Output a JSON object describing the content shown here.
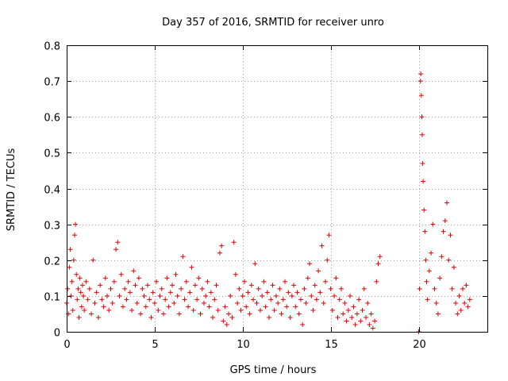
{
  "colors": {
    "series": "#e00000",
    "grid": "#a0a0a0",
    "axis": "#000000"
  },
  "chart_data": {
    "type": "scatter",
    "title": "Day 357 of 2016, SRMTID for receiver unro",
    "xlabel": "GPS time / hours",
    "ylabel": "SRMTID / TECUs",
    "xlim": [
      0,
      23.9
    ],
    "ylim": [
      0,
      0.8
    ],
    "xticks": [
      0,
      5,
      10,
      15,
      20
    ],
    "yticks": [
      0,
      0.1,
      0.2,
      0.3,
      0.4,
      0.5,
      0.6,
      0.7,
      0.8
    ],
    "xtick_labels": [
      "0",
      "5",
      "10",
      "15",
      "20"
    ],
    "ytick_labels": [
      "0",
      "0.1",
      "0.2",
      "0.3",
      "0.4",
      "0.5",
      "0.6",
      "0.7",
      "0.8"
    ],
    "grid": true,
    "marker": "+",
    "series": [
      {
        "name": "SRMTID",
        "points": [
          [
            0.0,
            0.08
          ],
          [
            0.05,
            0.12
          ],
          [
            0.1,
            0.05
          ],
          [
            0.15,
            0.18
          ],
          [
            0.2,
            0.23
          ],
          [
            0.25,
            0.1
          ],
          [
            0.3,
            0.14
          ],
          [
            0.35,
            0.06
          ],
          [
            0.4,
            0.2
          ],
          [
            0.45,
            0.27
          ],
          [
            0.5,
            0.3
          ],
          [
            0.55,
            0.16
          ],
          [
            0.6,
            0.09
          ],
          [
            0.65,
            0.12
          ],
          [
            0.7,
            0.04
          ],
          [
            0.75,
            0.15
          ],
          [
            0.8,
            0.11
          ],
          [
            0.85,
            0.07
          ],
          [
            0.9,
            0.13
          ],
          [
            0.95,
            0.1
          ],
          [
            1.0,
            0.06
          ],
          [
            1.1,
            0.14
          ],
          [
            1.2,
            0.09
          ],
          [
            1.3,
            0.12
          ],
          [
            1.4,
            0.05
          ],
          [
            1.5,
            0.2
          ],
          [
            1.6,
            0.08
          ],
          [
            1.7,
            0.11
          ],
          [
            1.8,
            0.04
          ],
          [
            1.9,
            0.13
          ],
          [
            2.0,
            0.09
          ],
          [
            2.1,
            0.07
          ],
          [
            2.2,
            0.15
          ],
          [
            2.3,
            0.1
          ],
          [
            2.4,
            0.06
          ],
          [
            2.5,
            0.12
          ],
          [
            2.6,
            0.08
          ],
          [
            2.7,
            0.14
          ],
          [
            2.8,
            0.23
          ],
          [
            2.9,
            0.25
          ],
          [
            3.0,
            0.1
          ],
          [
            3.1,
            0.16
          ],
          [
            3.2,
            0.07
          ],
          [
            3.3,
            0.12
          ],
          [
            3.4,
            0.09
          ],
          [
            3.5,
            0.14
          ],
          [
            3.6,
            0.11
          ],
          [
            3.7,
            0.06
          ],
          [
            3.8,
            0.17
          ],
          [
            3.9,
            0.13
          ],
          [
            4.0,
            0.08
          ],
          [
            4.1,
            0.15
          ],
          [
            4.2,
            0.05
          ],
          [
            4.3,
            0.12
          ],
          [
            4.4,
            0.1
          ],
          [
            4.5,
            0.07
          ],
          [
            4.6,
            0.13
          ],
          [
            4.7,
            0.09
          ],
          [
            4.8,
            0.04
          ],
          [
            4.9,
            0.11
          ],
          [
            5.0,
            0.08
          ],
          [
            5.1,
            0.14
          ],
          [
            5.2,
            0.06
          ],
          [
            5.3,
            0.1
          ],
          [
            5.4,
            0.12
          ],
          [
            5.5,
            0.05
          ],
          [
            5.6,
            0.09
          ],
          [
            5.7,
            0.15
          ],
          [
            5.8,
            0.07
          ],
          [
            5.9,
            0.11
          ],
          [
            6.0,
            0.13
          ],
          [
            6.1,
            0.08
          ],
          [
            6.2,
            0.16
          ],
          [
            6.3,
            0.1
          ],
          [
            6.4,
            0.05
          ],
          [
            6.5,
            0.12
          ],
          [
            6.6,
            0.21
          ],
          [
            6.7,
            0.09
          ],
          [
            6.8,
            0.14
          ],
          [
            6.9,
            0.07
          ],
          [
            7.0,
            0.11
          ],
          [
            7.1,
            0.18
          ],
          [
            7.2,
            0.06
          ],
          [
            7.3,
            0.13
          ],
          [
            7.4,
            0.09
          ],
          [
            7.5,
            0.15
          ],
          [
            7.6,
            0.05
          ],
          [
            7.7,
            0.12
          ],
          [
            7.8,
            0.08
          ],
          [
            7.9,
            0.1
          ],
          [
            8.0,
            0.14
          ],
          [
            8.1,
            0.07
          ],
          [
            8.2,
            0.11
          ],
          [
            8.3,
            0.04
          ],
          [
            8.4,
            0.09
          ],
          [
            8.5,
            0.13
          ],
          [
            8.6,
            0.06
          ],
          [
            8.7,
            0.22
          ],
          [
            8.8,
            0.24
          ],
          [
            8.9,
            0.03
          ],
          [
            9.0,
            0.07
          ],
          [
            9.1,
            0.02
          ],
          [
            9.2,
            0.05
          ],
          [
            9.3,
            0.1
          ],
          [
            9.4,
            0.04
          ],
          [
            9.5,
            0.25
          ],
          [
            9.6,
            0.16
          ],
          [
            9.7,
            0.08
          ],
          [
            9.8,
            0.12
          ],
          [
            9.9,
            0.06
          ],
          [
            10.0,
            0.1
          ],
          [
            10.1,
            0.14
          ],
          [
            10.2,
            0.07
          ],
          [
            10.3,
            0.11
          ],
          [
            10.4,
            0.05
          ],
          [
            10.5,
            0.13
          ],
          [
            10.6,
            0.09
          ],
          [
            10.7,
            0.19
          ],
          [
            10.8,
            0.08
          ],
          [
            10.9,
            0.12
          ],
          [
            11.0,
            0.06
          ],
          [
            11.1,
            0.1
          ],
          [
            11.2,
            0.14
          ],
          [
            11.3,
            0.07
          ],
          [
            11.4,
            0.11
          ],
          [
            11.5,
            0.04
          ],
          [
            11.6,
            0.09
          ],
          [
            11.7,
            0.13
          ],
          [
            11.8,
            0.06
          ],
          [
            11.9,
            0.1
          ],
          [
            12.0,
            0.08
          ],
          [
            12.1,
            0.12
          ],
          [
            12.2,
            0.05
          ],
          [
            12.3,
            0.09
          ],
          [
            12.4,
            0.14
          ],
          [
            12.5,
            0.07
          ],
          [
            12.6,
            0.11
          ],
          [
            12.7,
            0.04
          ],
          [
            12.8,
            0.1
          ],
          [
            12.9,
            0.13
          ],
          [
            13.0,
            0.07
          ],
          [
            13.1,
            0.11
          ],
          [
            13.2,
            0.05
          ],
          [
            13.3,
            0.09
          ],
          [
            13.4,
            0.02
          ],
          [
            13.5,
            0.12
          ],
          [
            13.6,
            0.08
          ],
          [
            13.7,
            0.15
          ],
          [
            13.8,
            0.19
          ],
          [
            13.9,
            0.1
          ],
          [
            14.0,
            0.06
          ],
          [
            14.1,
            0.13
          ],
          [
            14.2,
            0.09
          ],
          [
            14.3,
            0.17
          ],
          [
            14.4,
            0.11
          ],
          [
            14.5,
            0.24
          ],
          [
            14.6,
            0.08
          ],
          [
            14.7,
            0.14
          ],
          [
            14.8,
            0.2
          ],
          [
            14.9,
            0.27
          ],
          [
            15.0,
            0.12
          ],
          [
            15.1,
            0.06
          ],
          [
            15.2,
            0.1
          ],
          [
            15.3,
            0.15
          ],
          [
            15.4,
            0.04
          ],
          [
            15.5,
            0.09
          ],
          [
            15.6,
            0.12
          ],
          [
            15.7,
            0.05
          ],
          [
            15.8,
            0.08
          ],
          [
            15.9,
            0.03
          ],
          [
            16.0,
            0.06
          ],
          [
            16.1,
            0.1
          ],
          [
            16.2,
            0.04
          ],
          [
            16.3,
            0.07
          ],
          [
            16.4,
            0.02
          ],
          [
            16.5,
            0.05
          ],
          [
            16.6,
            0.09
          ],
          [
            16.7,
            0.03
          ],
          [
            16.8,
            0.06
          ],
          [
            16.9,
            0.12
          ],
          [
            17.0,
            0.04
          ],
          [
            17.1,
            0.08
          ],
          [
            17.2,
            0.02
          ],
          [
            17.3,
            0.05
          ],
          [
            17.4,
            0.01
          ],
          [
            17.5,
            0.03
          ],
          [
            17.6,
            0.14
          ],
          [
            17.7,
            0.19
          ],
          [
            17.8,
            0.21
          ],
          [
            20.0,
            0.0
          ],
          [
            20.05,
            0.12
          ],
          [
            20.1,
            0.7
          ],
          [
            20.12,
            0.72
          ],
          [
            20.15,
            0.66
          ],
          [
            20.18,
            0.6
          ],
          [
            20.2,
            0.55
          ],
          [
            20.22,
            0.47
          ],
          [
            20.25,
            0.42
          ],
          [
            20.3,
            0.34
          ],
          [
            20.35,
            0.28
          ],
          [
            20.4,
            0.2
          ],
          [
            20.45,
            0.14
          ],
          [
            20.5,
            0.09
          ],
          [
            20.6,
            0.17
          ],
          [
            20.7,
            0.22
          ],
          [
            20.8,
            0.3
          ],
          [
            20.9,
            0.12
          ],
          [
            21.0,
            0.08
          ],
          [
            21.1,
            0.05
          ],
          [
            21.2,
            0.15
          ],
          [
            21.3,
            0.21
          ],
          [
            21.4,
            0.28
          ],
          [
            21.5,
            0.31
          ],
          [
            21.6,
            0.36
          ],
          [
            21.7,
            0.2
          ],
          [
            21.8,
            0.27
          ],
          [
            21.9,
            0.12
          ],
          [
            22.0,
            0.18
          ],
          [
            22.1,
            0.08
          ],
          [
            22.2,
            0.05
          ],
          [
            22.3,
            0.1
          ],
          [
            22.4,
            0.06
          ],
          [
            22.5,
            0.12
          ],
          [
            22.6,
            0.08
          ],
          [
            22.7,
            0.13
          ],
          [
            22.8,
            0.07
          ],
          [
            22.9,
            0.09
          ]
        ]
      }
    ]
  }
}
